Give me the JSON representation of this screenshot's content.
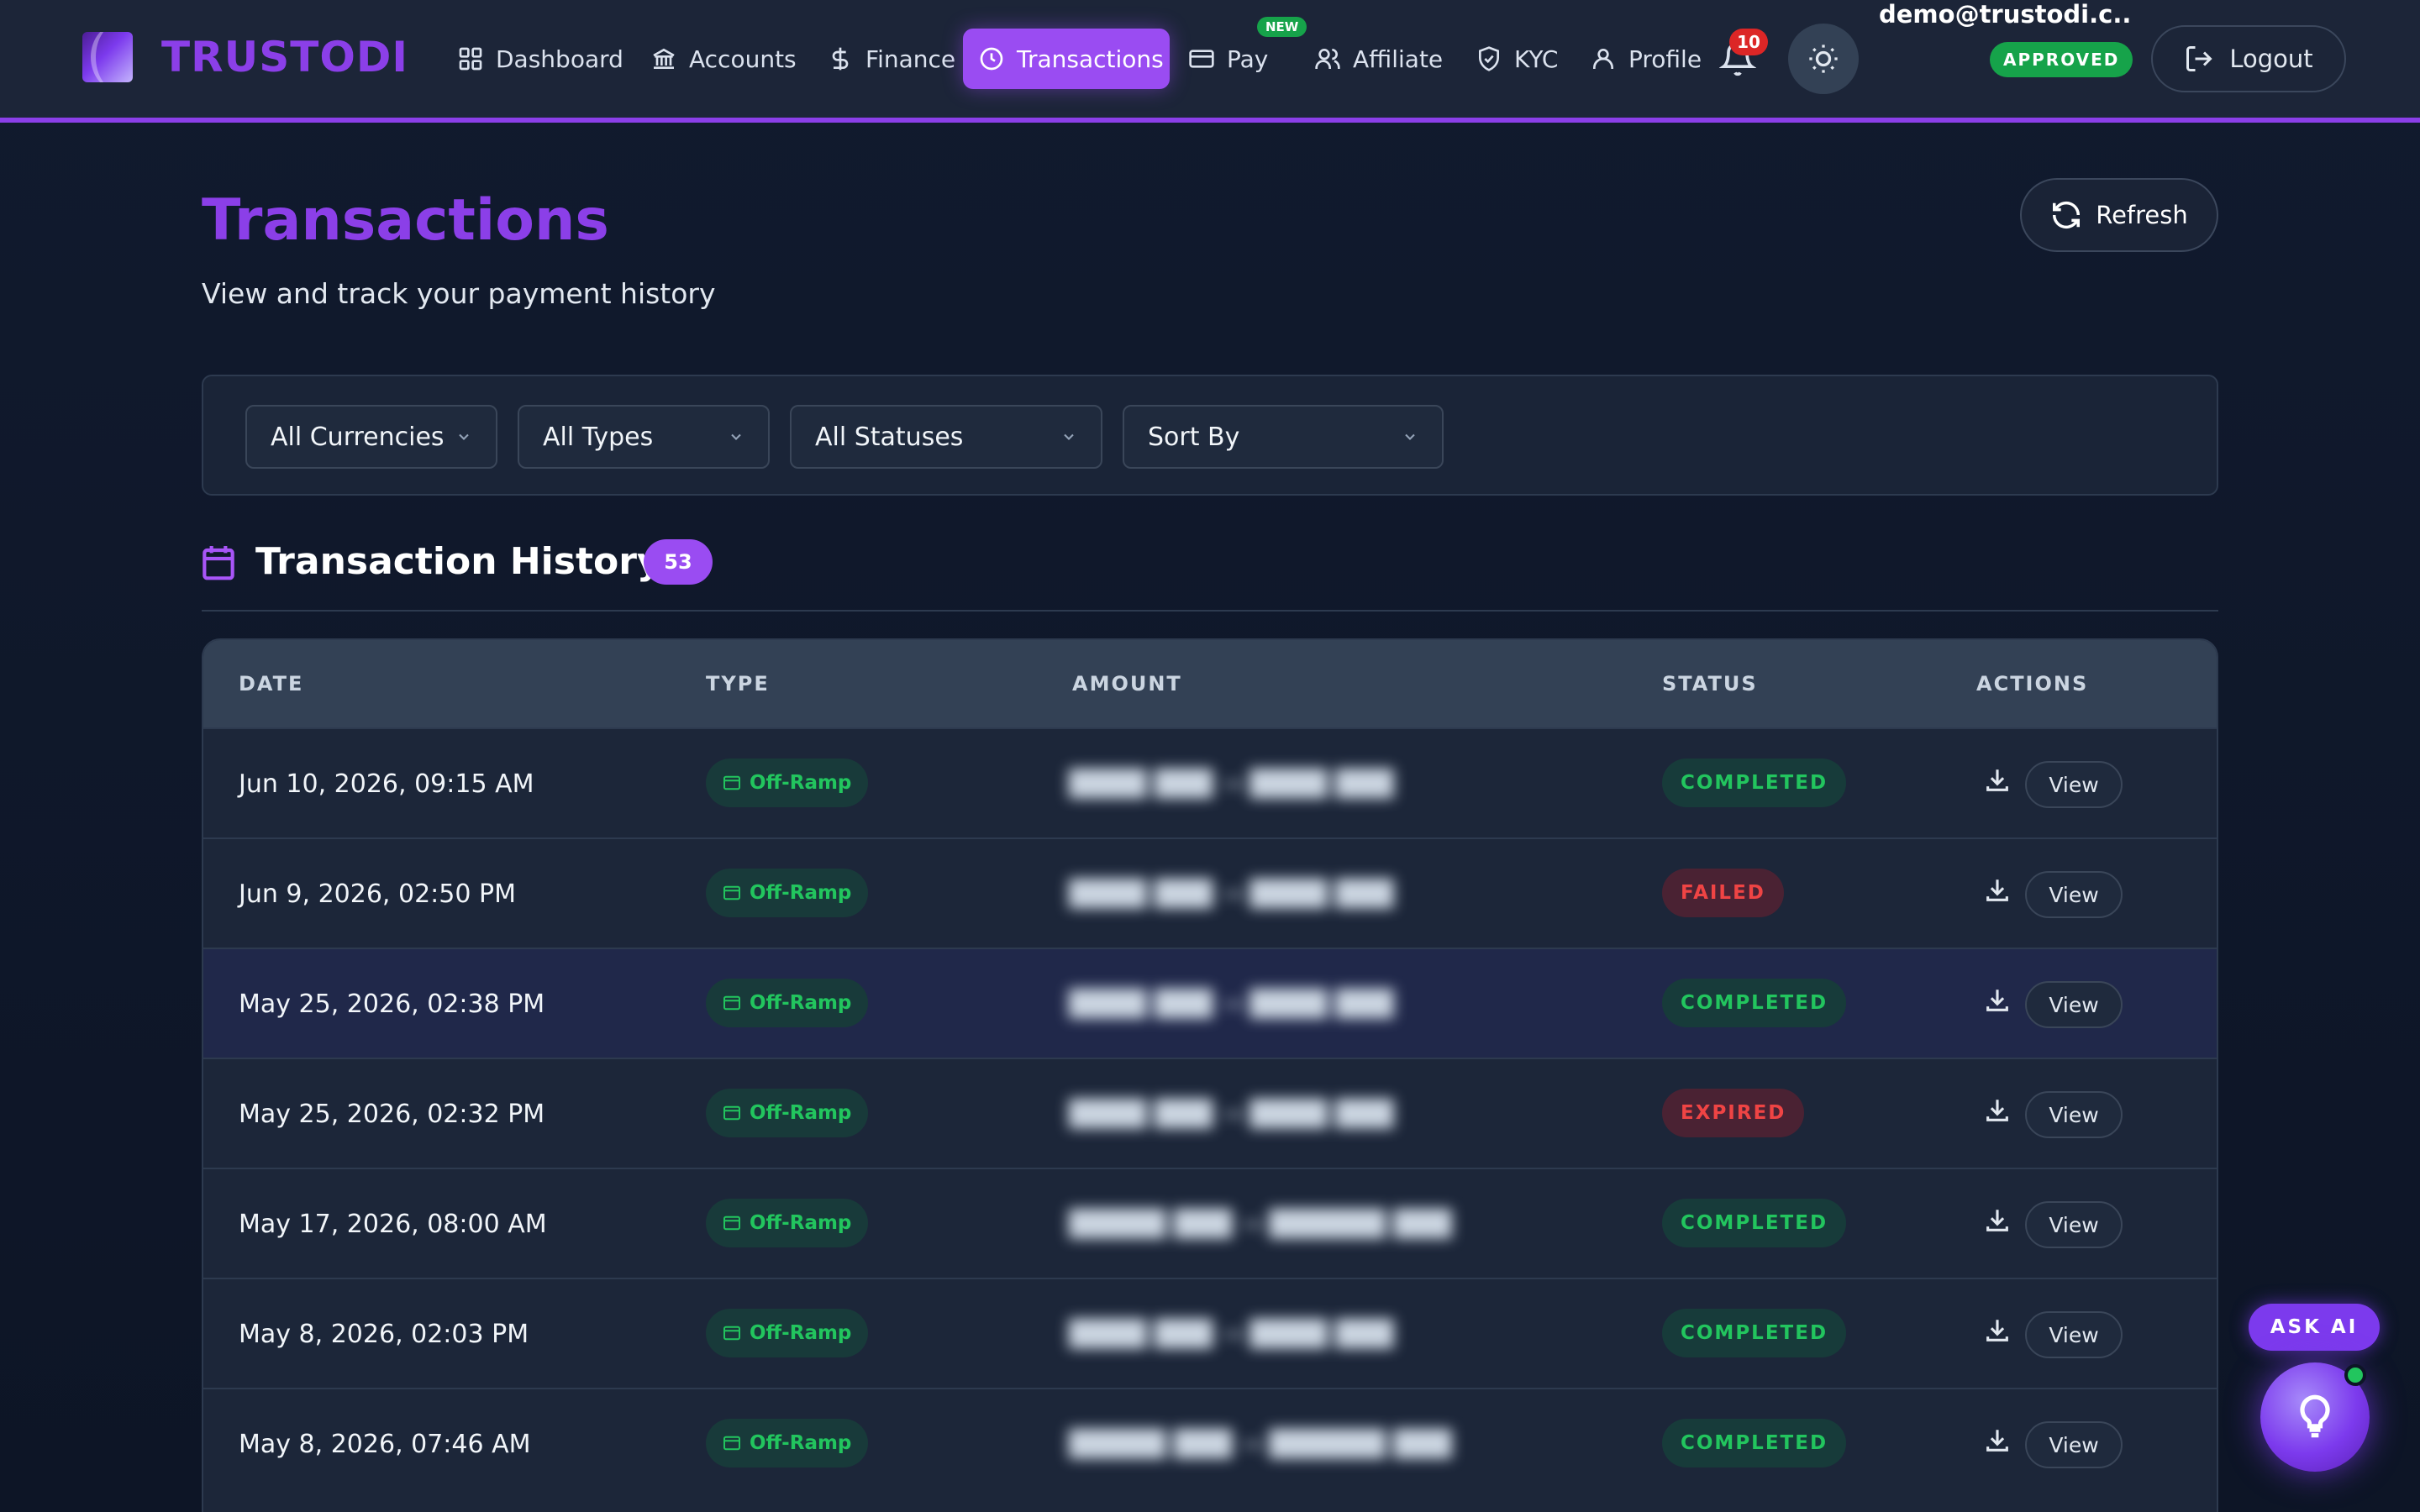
{
  "brand": {
    "name": "TRUSTODI"
  },
  "nav": {
    "items": [
      {
        "label": "Dashboard",
        "icon": "grid-icon"
      },
      {
        "label": "Accounts",
        "icon": "bank-icon"
      },
      {
        "label": "Finance",
        "icon": "dollar-icon"
      },
      {
        "label": "Transactions",
        "icon": "clock-icon",
        "active": true
      },
      {
        "label": "Pay",
        "icon": "card-icon",
        "badge": "NEW"
      },
      {
        "label": "Affiliate",
        "icon": "users-icon"
      },
      {
        "label": "KYC",
        "icon": "shield-check-icon"
      },
      {
        "label": "Profile",
        "icon": "user-icon"
      }
    ],
    "notifications": "10",
    "user_email": "demo@trustodi.c...",
    "kyc_status": "APPROVED",
    "logout_label": "Logout"
  },
  "page": {
    "title": "Transactions",
    "subtitle": "View and track your payment history",
    "refresh_label": "Refresh"
  },
  "filters": {
    "currency": "All Currencies",
    "type": "All Types",
    "status": "All Statuses",
    "sort": "Sort By"
  },
  "history": {
    "title": "Transaction History",
    "count": "53"
  },
  "table": {
    "headers": {
      "date": "DATE",
      "type": "TYPE",
      "amount": "AMOUNT",
      "status": "STATUS",
      "actions": "ACTIONS"
    },
    "view_label": "View",
    "rows": [
      {
        "date": "Jun 10, 2026, 09:15 AM",
        "type": "Off-Ramp",
        "amount": "████ ███ → ████ ███",
        "status": "COMPLETED",
        "status_kind": "ok"
      },
      {
        "date": "Jun 9, 2026, 02:50 PM",
        "type": "Off-Ramp",
        "amount": "████ ███ → ████ ███",
        "status": "FAILED",
        "status_kind": "bad"
      },
      {
        "date": "May 25, 2026, 02:38 PM",
        "type": "Off-Ramp",
        "amount": "████ ███ → ████ ███",
        "status": "COMPLETED",
        "status_kind": "ok"
      },
      {
        "date": "May 25, 2026, 02:32 PM",
        "type": "Off-Ramp",
        "amount": "████ ███ → ████ ███",
        "status": "EXPIRED",
        "status_kind": "bad"
      },
      {
        "date": "May 17, 2026, 08:00 AM",
        "type": "Off-Ramp",
        "amount": "█████ ███ → ██████ ███",
        "status": "COMPLETED",
        "status_kind": "ok"
      },
      {
        "date": "May 8, 2026, 02:03 PM",
        "type": "Off-Ramp",
        "amount": "████ ███ → ████ ███",
        "status": "COMPLETED",
        "status_kind": "ok"
      },
      {
        "date": "May 8, 2026, 07:46 AM",
        "type": "Off-Ramp",
        "amount": "█████ ███ → ██████ ███",
        "status": "COMPLETED",
        "status_kind": "ok"
      }
    ]
  },
  "assistant": {
    "label": "ASK AI"
  }
}
